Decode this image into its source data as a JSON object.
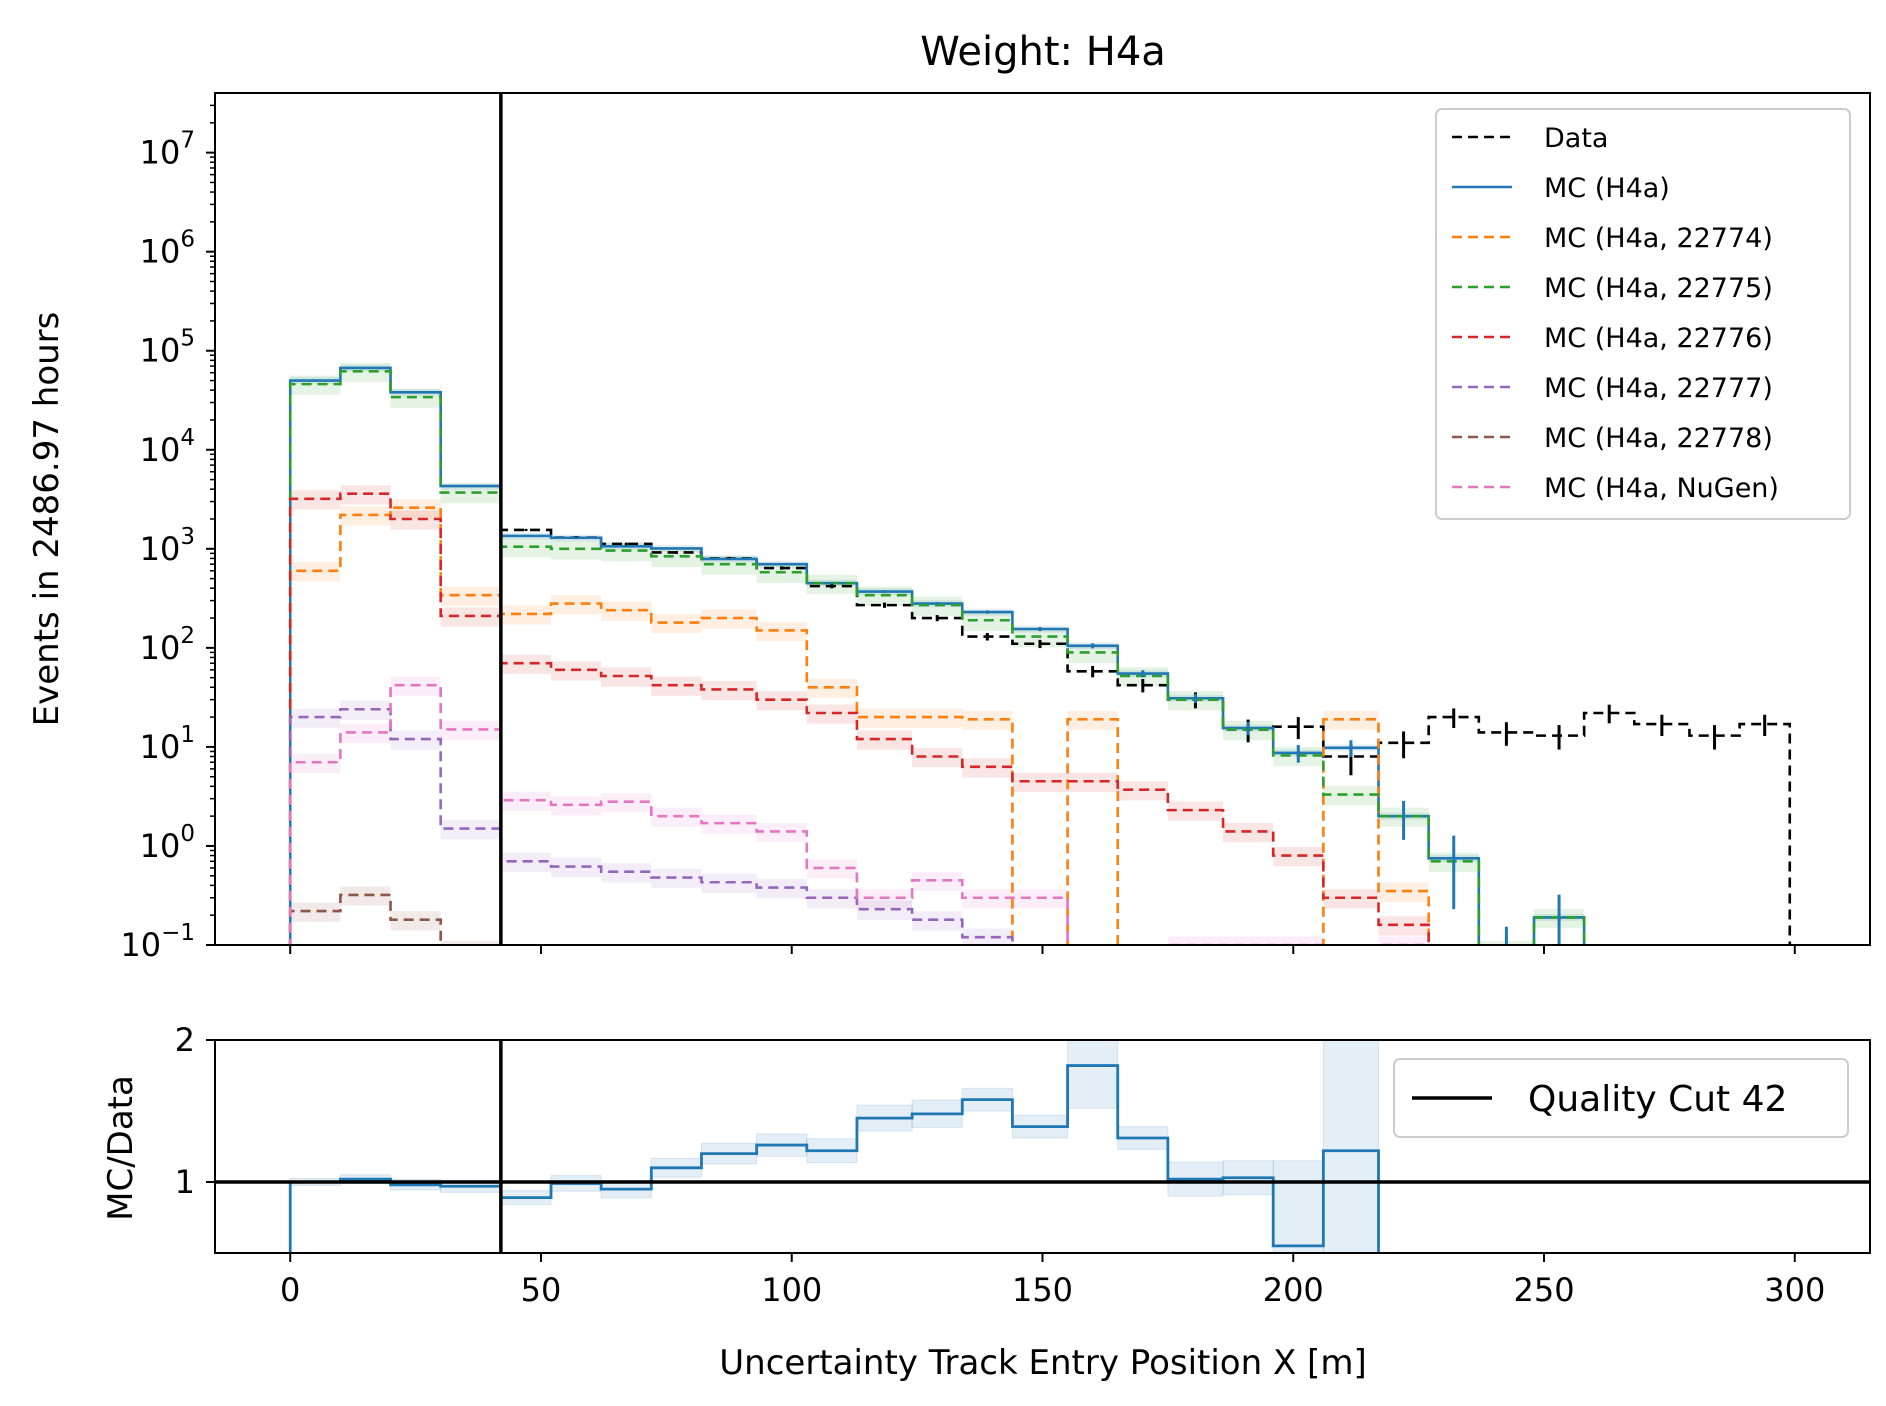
{
  "figure": {
    "title": "Weight: H4a",
    "main_ylabel": "Events in 2486.97 hours",
    "ratio_ylabel": "MC/Data",
    "xlabel": "Uncertainty Track Entry Position X [m]"
  },
  "chart_data": [
    {
      "type": "line",
      "panel": "main",
      "title": "Weight: H4a",
      "ylabel": "Events in 2486.97 hours",
      "yscale": "log",
      "xlim": [
        -15,
        315
      ],
      "ylim": [
        0.1,
        40000000
      ],
      "y_ticks": [
        {
          "value": 0.1,
          "base": "10",
          "exp": "−1"
        },
        {
          "value": 1,
          "base": "10",
          "exp": "0"
        },
        {
          "value": 10,
          "base": "10",
          "exp": "1"
        },
        {
          "value": 100,
          "base": "10",
          "exp": "2"
        },
        {
          "value": 1000,
          "base": "10",
          "exp": "3"
        },
        {
          "value": 10000,
          "base": "10",
          "exp": "4"
        },
        {
          "value": 100000,
          "base": "10",
          "exp": "5"
        },
        {
          "value": 1000000,
          "base": "10",
          "exp": "6"
        },
        {
          "value": 10000000,
          "base": "10",
          "exp": "7"
        }
      ],
      "bin_edges": [
        0,
        10,
        20,
        30,
        42,
        52,
        62,
        72,
        82,
        93,
        103,
        113,
        124,
        134,
        144,
        155,
        165,
        175,
        186,
        196,
        206,
        217,
        227,
        237,
        248,
        258,
        268,
        279,
        289,
        299
      ],
      "cut_x": 42,
      "legend_position": "upper right",
      "series": [
        {
          "name": "Data",
          "color": "#000000",
          "dashed": true,
          "errorbars": true,
          "values": [
            null,
            null,
            null,
            null,
            1550,
            1300,
            1120,
            920,
            800,
            640,
            420,
            270,
            200,
            130,
            110,
            58,
            42,
            30,
            15,
            16,
            8,
            11,
            20,
            14,
            13,
            22,
            17,
            13,
            17
          ]
        },
        {
          "name": "MC (H4a)",
          "color": "#1f77b4",
          "dashed": false,
          "errorbars": true,
          "values": [
            50000,
            67000,
            38000,
            4300,
            1350,
            1290,
            1060,
            1010,
            790,
            700,
            450,
            370,
            280,
            230,
            155,
            105,
            55,
            31,
            15.5,
            8.7,
            9.8,
            2.0,
            0.75,
            0.09,
            0.19,
            null,
            null,
            null,
            null
          ]
        },
        {
          "name": "MC (H4a, 22774)",
          "color": "#ff7f0e",
          "dashed": true,
          "values": [
            600,
            2200,
            2600,
            340,
            220,
            280,
            240,
            180,
            200,
            150,
            40,
            20,
            20,
            19,
            0.04,
            19,
            0.01,
            null,
            null,
            null,
            19,
            0.35,
            null,
            null,
            null,
            null,
            null,
            null,
            null
          ]
        },
        {
          "name": "MC (H4a, 22775)",
          "color": "#2ca02c",
          "dashed": true,
          "values": [
            46000,
            62000,
            34000,
            3700,
            1050,
            1000,
            960,
            840,
            700,
            580,
            450,
            340,
            270,
            190,
            130,
            90,
            52,
            30,
            15,
            8.2,
            3.3,
            2.0,
            0.7,
            0.09,
            0.19,
            null,
            null,
            null,
            null
          ]
        },
        {
          "name": "MC (H4a, 22776)",
          "color": "#d62728",
          "dashed": true,
          "values": [
            3200,
            3600,
            2000,
            210,
            70,
            60,
            52,
            42,
            38,
            30,
            22,
            12,
            8,
            6.3,
            4.5,
            4.5,
            3.7,
            2.3,
            1.4,
            0.8,
            0.3,
            0.16,
            null,
            null,
            null,
            null,
            null,
            null,
            null
          ]
        },
        {
          "name": "MC (H4a, 22777)",
          "color": "#9467bd",
          "dashed": true,
          "values": [
            20,
            24,
            12,
            1.5,
            0.7,
            0.62,
            0.55,
            0.48,
            0.43,
            0.38,
            0.3,
            0.23,
            0.18,
            0.12,
            null,
            null,
            null,
            null,
            null,
            null,
            null,
            null,
            null,
            null,
            null,
            null,
            null,
            null,
            null
          ]
        },
        {
          "name": "MC (H4a, 22778)",
          "color": "#8c564b",
          "dashed": true,
          "values": [
            0.22,
            0.32,
            0.18,
            0.09,
            null,
            null,
            null,
            null,
            null,
            null,
            null,
            null,
            null,
            null,
            null,
            null,
            null,
            null,
            null,
            null,
            null,
            null,
            null,
            null,
            null,
            null,
            null,
            null,
            null
          ]
        },
        {
          "name": "MC (H4a, NuGen)",
          "color": "#e377c2",
          "dashed": true,
          "values": [
            7,
            14,
            42,
            15,
            2.9,
            2.6,
            2.8,
            2.0,
            1.7,
            1.4,
            0.6,
            0.3,
            0.45,
            0.3,
            0.3,
            0.05,
            0.05,
            0.1,
            0.1,
            0.1,
            0.06,
            0.1,
            null,
            null,
            null,
            null,
            null,
            null,
            null
          ]
        }
      ]
    },
    {
      "type": "line",
      "panel": "ratio",
      "xlabel": "Uncertainty Track Entry Position X [m]",
      "ylabel": "MC/Data",
      "xlim": [
        -15,
        315
      ],
      "ylim": [
        0.5,
        2.0
      ],
      "y_ticks": [
        1,
        2
      ],
      "x_ticks": [
        0,
        50,
        100,
        150,
        200,
        250,
        300
      ],
      "reference_line": 1,
      "cut_x": 42,
      "legend_position": "upper right",
      "legend": "Quality Cut 42",
      "series": [
        {
          "name": "MC (H4a)",
          "color": "#1f77b4",
          "values": [
            1.0,
            1.02,
            0.98,
            0.97,
            0.89,
            0.99,
            0.95,
            1.1,
            1.2,
            1.26,
            1.22,
            1.45,
            1.48,
            1.58,
            1.39,
            1.82,
            1.31,
            1.02,
            1.03,
            0.55,
            1.22
          ]
        }
      ]
    }
  ]
}
